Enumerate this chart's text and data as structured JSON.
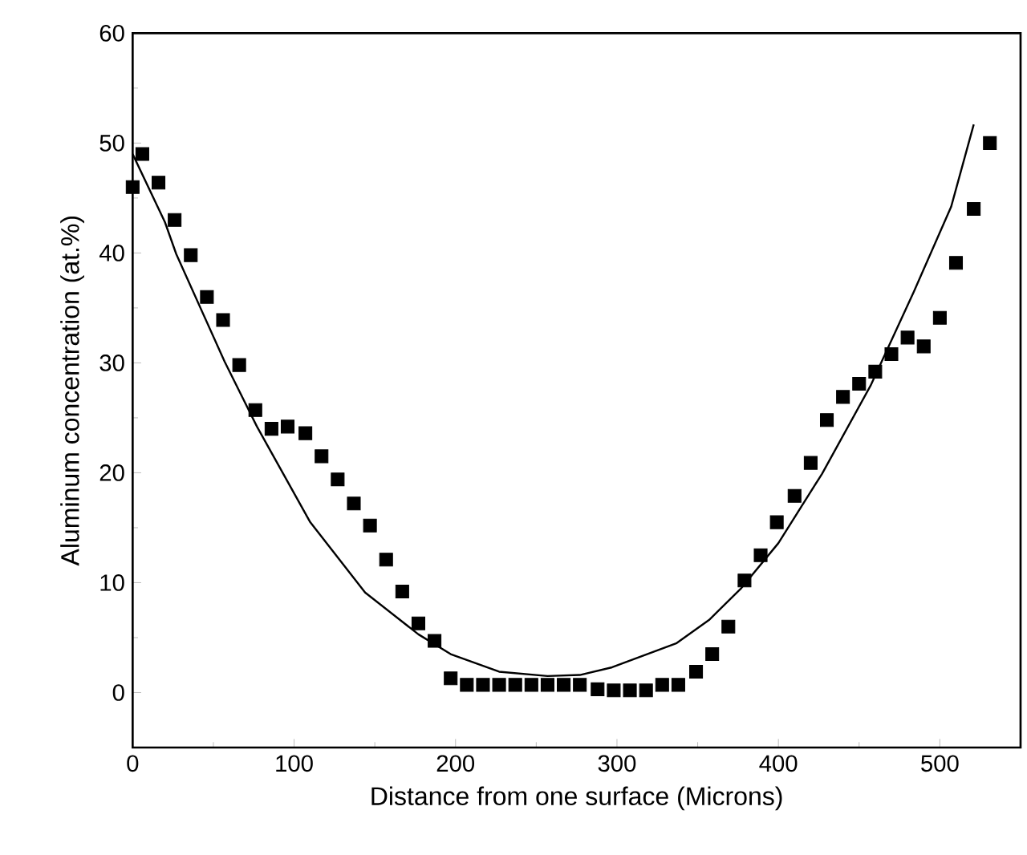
{
  "chart_data": {
    "type": "scatter",
    "xlabel": "Distance from one surface (Microns)",
    "ylabel": "Aluminum concentration (at.%)",
    "xlim": [
      0,
      550
    ],
    "ylim": [
      -5,
      60
    ],
    "xticks": [
      0,
      100,
      200,
      300,
      400,
      500
    ],
    "yticks": [
      0,
      10,
      20,
      30,
      40,
      50,
      60
    ],
    "marker": "square",
    "series": [
      {
        "color": "#000000",
        "x": [
          0,
          6,
          16,
          26,
          36,
          46,
          56,
          66,
          76,
          86,
          96,
          107,
          117,
          127,
          137,
          147,
          157,
          167,
          177,
          187,
          197,
          207,
          217,
          227,
          237,
          247,
          257,
          267,
          277,
          288,
          298,
          308,
          318,
          328,
          338,
          349,
          359,
          369,
          379,
          389,
          399,
          410,
          420,
          430,
          440,
          450,
          460,
          470,
          480,
          490,
          500,
          510,
          521,
          531
        ],
        "values": [
          46,
          49,
          46.4,
          43,
          39.8,
          36,
          33.9,
          29.8,
          25.7,
          24,
          24.2,
          23.6,
          21.5,
          19.4,
          17.2,
          15.2,
          12.1,
          9.2,
          6.3,
          4.7,
          1.3,
          0.7,
          0.7,
          0.7,
          0.7,
          0.7,
          0.7,
          0.7,
          0.7,
          0.3,
          0.2,
          0.2,
          0.2,
          0.7,
          0.7,
          1.9,
          3.5,
          6,
          10.2,
          12.5,
          15.5,
          17.9,
          20.9,
          24.8,
          26.9,
          28.1,
          29.2,
          30.8,
          32.3,
          31.5,
          34.1,
          39.1,
          44,
          50
        ]
      },
      {
        "type": "line",
        "color": "#000000",
        "marker": "none",
        "x": [
          0,
          20,
          27,
          57,
          77,
          110,
          144,
          177,
          197,
          227,
          257,
          277,
          297,
          317,
          337,
          357,
          377,
          400,
          427,
          457,
          484,
          507,
          521
        ],
        "values": [
          49,
          42.8,
          39.9,
          30.1,
          24.2,
          15.5,
          9.1,
          5.3,
          3.5,
          1.9,
          1.5,
          1.6,
          2.3,
          3.4,
          4.5,
          6.6,
          9.5,
          13.6,
          19.9,
          27.9,
          36.5,
          44.2,
          51.7
        ]
      }
    ]
  }
}
